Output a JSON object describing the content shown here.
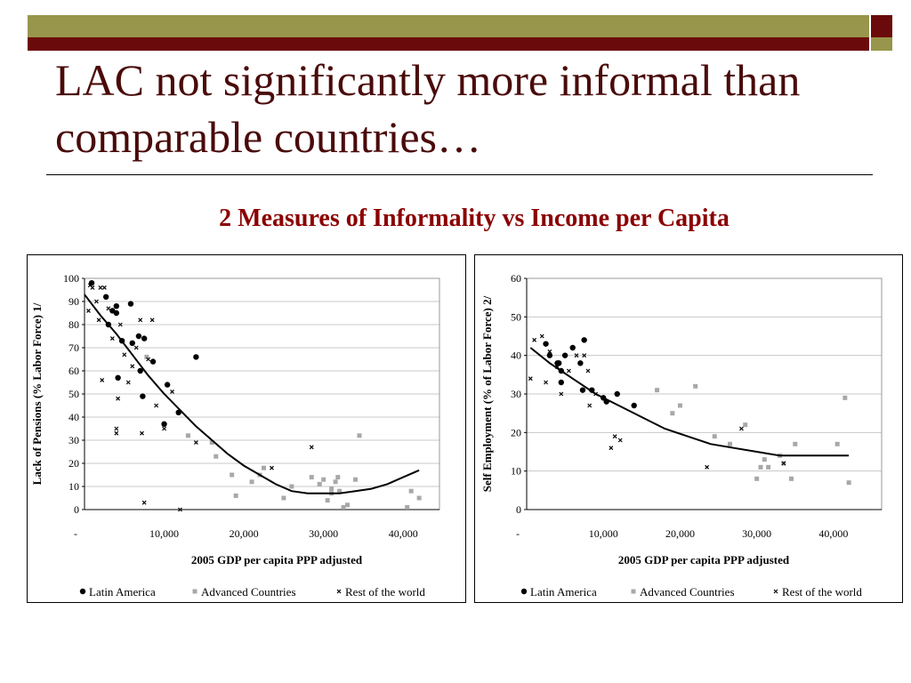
{
  "slide": {
    "title": "LAC not significantly more informal than comparable countries…",
    "subtitle": "2 Measures of Informality vs Income per Capita"
  },
  "colors": {
    "title": "#4a0a0a",
    "subtitle": "#8b0000",
    "bar_olive": "#98954c",
    "bar_maroon": "#6b0a0a",
    "latin_america": "#000000",
    "advanced": "#a8a8a8",
    "rest_of_world": "#000000",
    "trend": "#000000"
  },
  "chart_data": [
    {
      "type": "scatter",
      "xlabel": "2005 GDP per capita PPP adjusted",
      "ylabel": "Lack of Pensions (% Labor Force) 1/",
      "xlim": [
        0,
        45000
      ],
      "ylim": [
        0,
        100
      ],
      "xticks": [
        0,
        10000,
        20000,
        30000,
        40000
      ],
      "xtick_labels": [
        "-",
        "10,000",
        "20,000",
        "30,000",
        "40,000"
      ],
      "yticks": [
        0,
        10,
        20,
        30,
        40,
        50,
        60,
        70,
        80,
        90,
        100
      ],
      "ytick_labels": [
        "0",
        "10",
        "20",
        "30",
        "40",
        "50",
        "60",
        "70",
        "80",
        "90",
        "100"
      ],
      "legend_position": "bottom",
      "series": [
        {
          "name": "Latin America",
          "marker": "circle",
          "x": [
            900,
            2700,
            3000,
            3500,
            4000,
            4000,
            4200,
            4700,
            5800,
            6000,
            6800,
            7000,
            7300,
            7500,
            8600,
            10000,
            10400,
            11800,
            14000
          ],
          "y": [
            98,
            92,
            80,
            86,
            85,
            88,
            57,
            73,
            89,
            72,
            75,
            60,
            49,
            74,
            64,
            37,
            54,
            42,
            66
          ]
        },
        {
          "name": "Advanced Countries",
          "marker": "square",
          "x": [
            7800,
            13000,
            16000,
            16500,
            18500,
            19000,
            21000,
            22000,
            22500,
            25000,
            26000,
            28500,
            29500,
            30000,
            30500,
            31000,
            31000,
            31500,
            31800,
            32000,
            32500,
            33000,
            34000,
            34500,
            40500,
            41000,
            42000
          ],
          "y": [
            66,
            32,
            29,
            23,
            15,
            6,
            12,
            15,
            18,
            5,
            10,
            14,
            11,
            13,
            4,
            7,
            9,
            12,
            14,
            8,
            1,
            2,
            13,
            32,
            1,
            8,
            5
          ]
        },
        {
          "name": "Rest of the world",
          "marker": "x",
          "x": [
            500,
            700,
            1000,
            1500,
            1800,
            2000,
            2200,
            2500,
            3000,
            3500,
            4000,
            4000,
            4200,
            4500,
            5000,
            5500,
            6000,
            6500,
            7000,
            7200,
            7500,
            8000,
            8500,
            9000,
            10000,
            11000,
            12000,
            14000,
            23500,
            28500
          ],
          "y": [
            86,
            97,
            96,
            90,
            82,
            96,
            56,
            96,
            87,
            74,
            35,
            33,
            48,
            80,
            67,
            55,
            62,
            70,
            82,
            33,
            3,
            65,
            82,
            45,
            35,
            51,
            0,
            29,
            18,
            27
          ]
        }
      ],
      "trend_line": {
        "x": [
          0,
          2000,
          4000,
          6000,
          8000,
          10000,
          12000,
          14000,
          16000,
          18000,
          20000,
          22000,
          24000,
          26000,
          28000,
          30000,
          32000,
          34000,
          36000,
          38000,
          40000,
          42000
        ],
        "y": [
          93,
          84,
          76,
          67,
          58,
          50,
          43,
          36,
          30,
          24,
          19,
          15,
          11,
          8,
          7,
          7,
          7,
          8,
          9,
          11,
          14,
          17
        ]
      }
    },
    {
      "type": "scatter",
      "xlabel": "2005 GDP per capita PPP adjusted",
      "ylabel": "Self Employment (% of Labor Force) 2/",
      "xlim": [
        0,
        45000
      ],
      "ylim": [
        0,
        60
      ],
      "xticks": [
        0,
        10000,
        20000,
        30000,
        40000
      ],
      "xtick_labels": [
        "-",
        "10,000",
        "20,000",
        "30,000",
        "40,000"
      ],
      "yticks": [
        0,
        10,
        20,
        30,
        40,
        50,
        60
      ],
      "ytick_labels": [
        "0",
        "10",
        "20",
        "30",
        "40",
        "50",
        "60"
      ],
      "legend_position": "bottom",
      "series": [
        {
          "name": "Latin America",
          "marker": "circle",
          "x": [
            2500,
            3000,
            4000,
            4200,
            4500,
            4500,
            5000,
            6000,
            7000,
            7300,
            7500,
            8500,
            10000,
            10400,
            11800,
            14000
          ],
          "y": [
            43,
            40,
            38,
            38,
            36,
            33,
            40,
            42,
            38,
            31,
            44,
            31,
            29,
            28,
            30,
            27
          ]
        },
        {
          "name": "Advanced Countries",
          "marker": "square",
          "x": [
            17000,
            19000,
            20000,
            22000,
            24500,
            26500,
            28500,
            30000,
            30500,
            31000,
            31500,
            33000,
            33500,
            34500,
            35000,
            40500,
            41500,
            42000
          ],
          "y": [
            31,
            25,
            27,
            32,
            19,
            17,
            22,
            8,
            11,
            13,
            11,
            14,
            12,
            8,
            17,
            17,
            29,
            7
          ]
        },
        {
          "name": "Rest of the world",
          "marker": "x",
          "x": [
            500,
            1000,
            2000,
            2500,
            3000,
            4000,
            4500,
            5500,
            6500,
            7500,
            8000,
            8200,
            9000,
            11000,
            11500,
            12200,
            23500,
            28000,
            33500
          ],
          "y": [
            34,
            44,
            45,
            33,
            41,
            37,
            30,
            36,
            40,
            40,
            36,
            27,
            30,
            16,
            19,
            18,
            11,
            21,
            12
          ]
        }
      ],
      "trend_line": {
        "x": [
          500,
          3000,
          6000,
          9000,
          12000,
          15000,
          18000,
          21000,
          24000,
          27000,
          30000,
          33000,
          36000,
          39000,
          42000
        ],
        "y": [
          42,
          38,
          34,
          30,
          27,
          24,
          21,
          19,
          17,
          16,
          15,
          14,
          14,
          14,
          14
        ]
      }
    }
  ]
}
